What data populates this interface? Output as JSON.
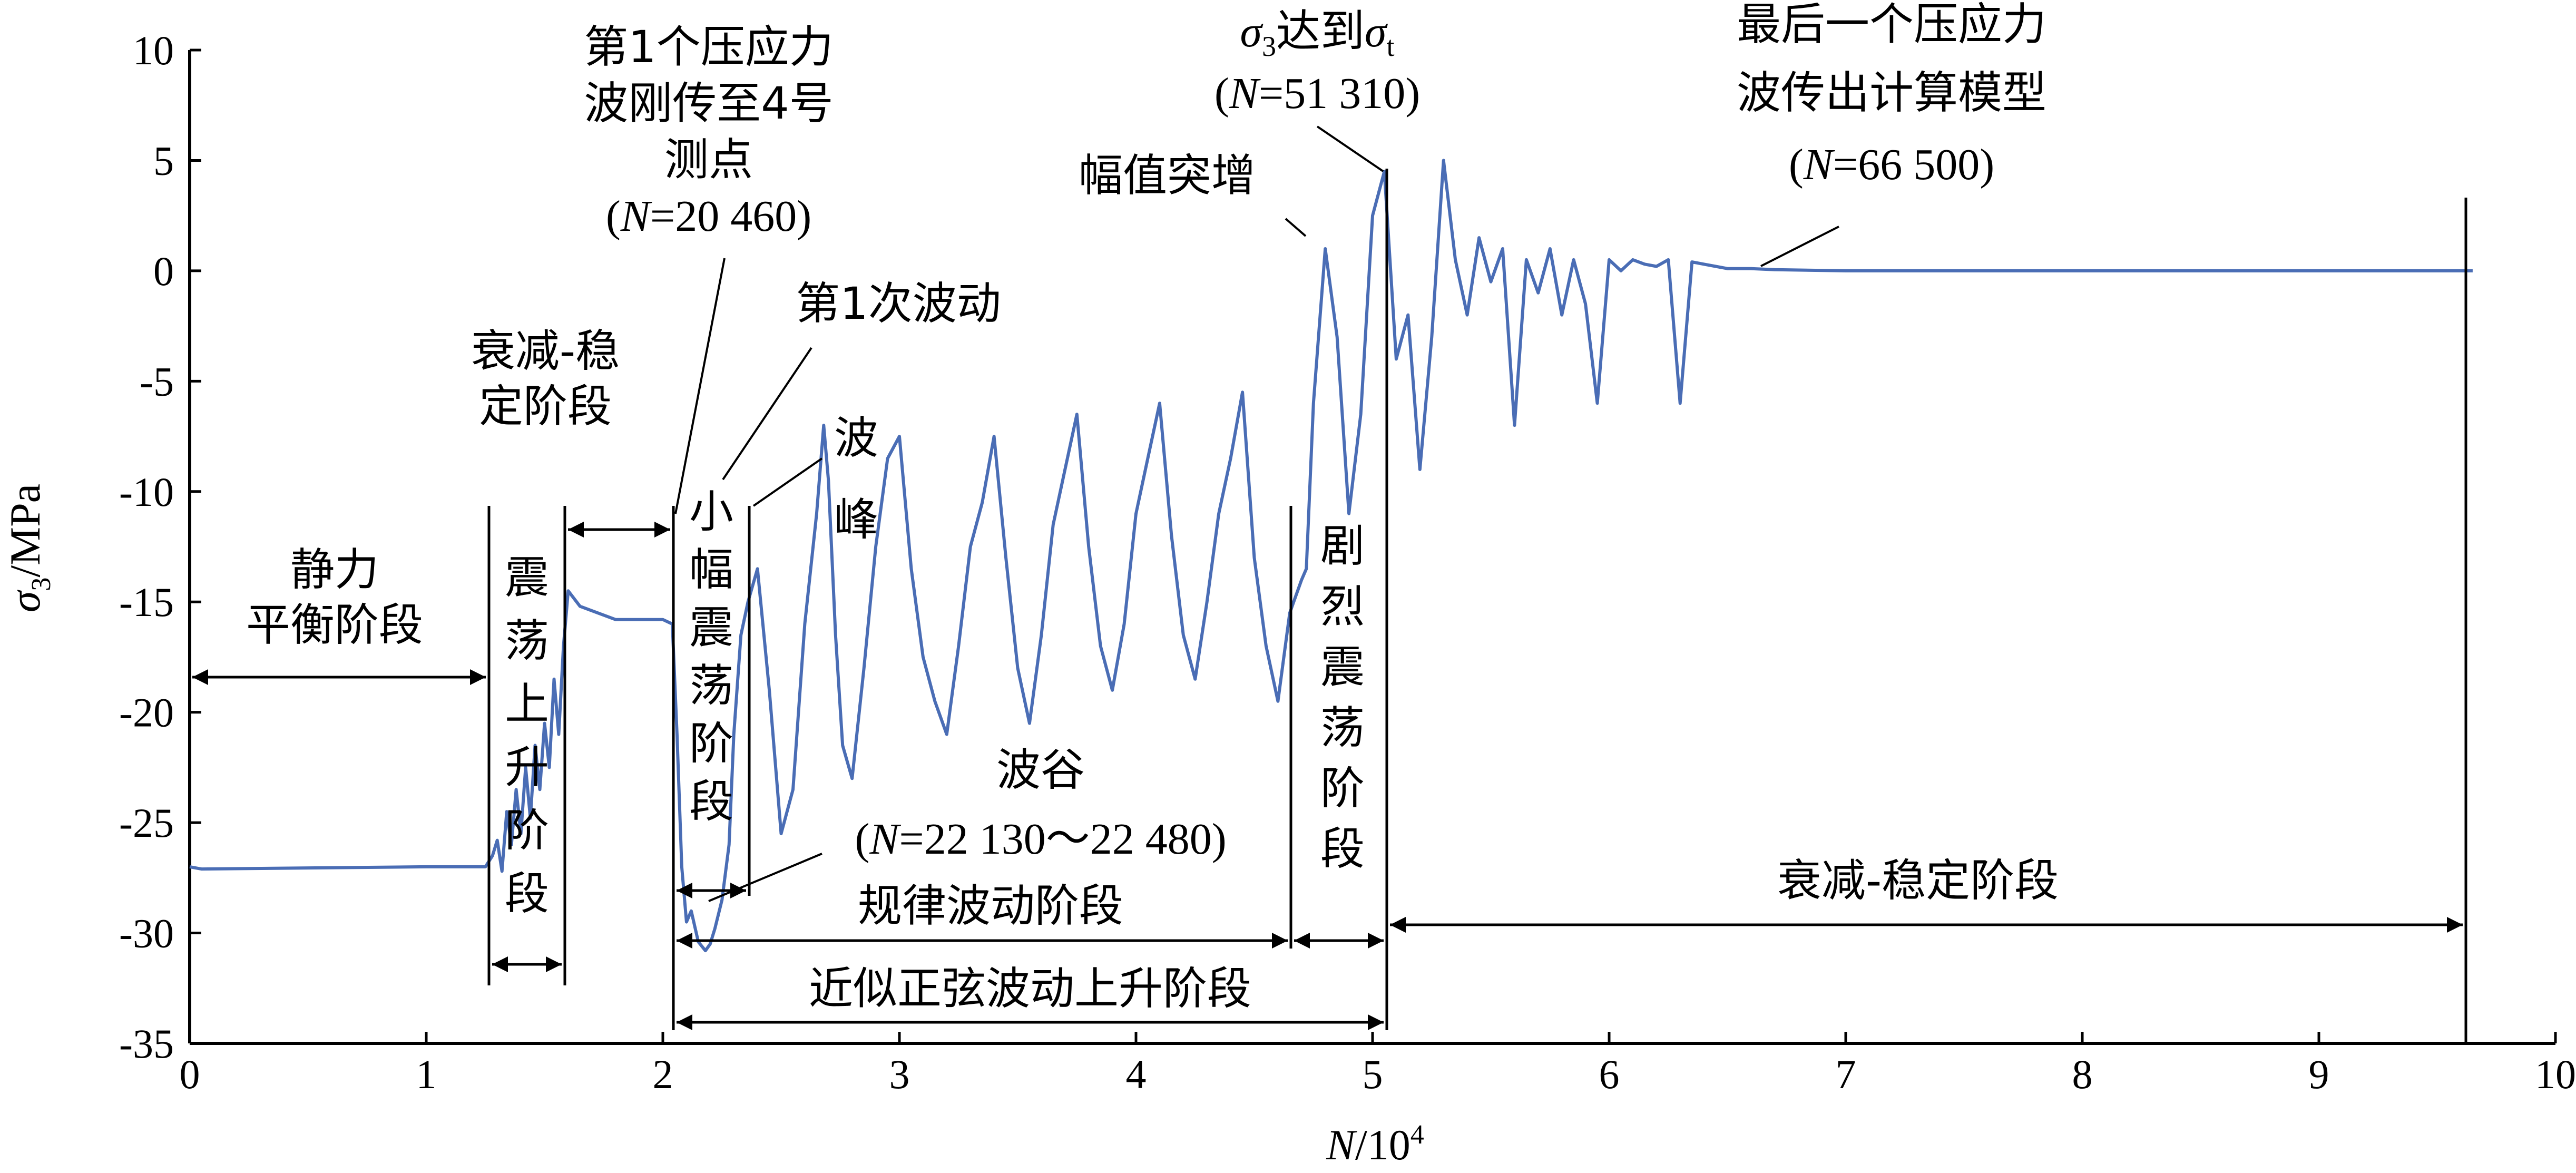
{
  "chart_data": {
    "type": "line",
    "xlabel": "N/10⁴",
    "ylabel": "σ₃/MPa",
    "xlim": [
      0,
      10
    ],
    "ylim": [
      -35,
      10
    ],
    "x_ticks": [
      "0",
      "1",
      "2",
      "3",
      "4",
      "5",
      "6",
      "7",
      "8",
      "9",
      "10"
    ],
    "y_ticks": [
      "10",
      "5",
      "0",
      "-5",
      "-10",
      "-15",
      "-20",
      "-25",
      "-30",
      "-35"
    ],
    "series_color": "#4a6db5",
    "series": [
      {
        "x": [
          0,
          0.05,
          1.0,
          1.25,
          1.28,
          1.3,
          1.32,
          1.34,
          1.36,
          1.38,
          1.4,
          1.42,
          1.44,
          1.46,
          1.48,
          1.5,
          1.52,
          1.54,
          1.56,
          1.58,
          1.6,
          1.65,
          1.8,
          2.0,
          2.04,
          2.06,
          2.08,
          2.1,
          2.12,
          2.15,
          2.18,
          2.2,
          2.22,
          2.25,
          2.28,
          2.3,
          2.33,
          2.36,
          2.4,
          2.45,
          2.5,
          2.55,
          2.6,
          2.65,
          2.68,
          2.7,
          2.73,
          2.76,
          2.8,
          2.85,
          2.9,
          2.95,
          3.0,
          3.05,
          3.1,
          3.15,
          3.2,
          3.25,
          3.3,
          3.35,
          3.4,
          3.45,
          3.5,
          3.55,
          3.6,
          3.65,
          3.7,
          3.75,
          3.8,
          3.85,
          3.9,
          3.95,
          4.0,
          4.05,
          4.1,
          4.15,
          4.2,
          4.25,
          4.3,
          4.35,
          4.4,
          4.45,
          4.5,
          4.55,
          4.6,
          4.65,
          4.7,
          4.72,
          4.75,
          4.8,
          4.85,
          4.9,
          4.95,
          5.0,
          5.05,
          5.1,
          5.15,
          5.2,
          5.25,
          5.3,
          5.35,
          5.4,
          5.45,
          5.5,
          5.55,
          5.6,
          5.65,
          5.7,
          5.75,
          5.8,
          5.85,
          5.9,
          5.95,
          6.0,
          6.05,
          6.1,
          6.15,
          6.2,
          6.25,
          6.3,
          6.35,
          6.4,
          6.45,
          6.5,
          6.6,
          6.7,
          7.0,
          8.0,
          9.0,
          9.65
        ],
        "y": [
          -27,
          -27.1,
          -27.0,
          -27.0,
          -26.5,
          -25.8,
          -27.2,
          -24.5,
          -26.0,
          -23.5,
          -25.5,
          -22.5,
          -24.8,
          -21.5,
          -23.5,
          -20.5,
          -22.5,
          -18.5,
          -21.0,
          -17.0,
          -14.5,
          -15.2,
          -15.8,
          -15.8,
          -16.0,
          -21.0,
          -27.0,
          -29.5,
          -29.0,
          -30.4,
          -30.8,
          -30.5,
          -29.8,
          -28.5,
          -26.0,
          -21.0,
          -16.5,
          -15.0,
          -13.5,
          -19.0,
          -25.5,
          -23.5,
          -16.0,
          -11.0,
          -7.0,
          -9.5,
          -16.5,
          -21.5,
          -23.0,
          -18.0,
          -12.5,
          -8.5,
          -7.5,
          -13.5,
          -17.5,
          -19.5,
          -21.0,
          -17.0,
          -12.5,
          -10.5,
          -7.5,
          -13.0,
          -18.0,
          -20.5,
          -16.5,
          -11.5,
          -9.0,
          -6.5,
          -12.5,
          -17.0,
          -19.0,
          -16.0,
          -11.0,
          -8.5,
          -6.0,
          -12.0,
          -16.5,
          -18.5,
          -15.0,
          -11.0,
          -8.5,
          -5.5,
          -13.0,
          -17.0,
          -19.5,
          -15.5,
          -14.0,
          -13.5,
          -6.0,
          1.0,
          -3.0,
          -11.0,
          -6.5,
          2.5,
          4.5,
          -4.0,
          -2.0,
          -9.0,
          -3.0,
          5.0,
          0.5,
          -2.0,
          1.5,
          -0.5,
          1.0,
          -7.0,
          0.5,
          -1.0,
          1.0,
          -2.0,
          0.5,
          -1.5,
          -6.0,
          0.5,
          0.0,
          0.5,
          0.3,
          0.2,
          0.5,
          -6.0,
          0.4,
          0.3,
          0.2,
          0.1,
          0.1,
          0.05,
          0.0,
          0.0,
          0.0,
          0.0
        ]
      }
    ]
  },
  "annotations": {
    "static_balance_1": "静力",
    "static_balance_2": "平衡阶段",
    "oscillation_rise_chars": [
      "震",
      "荡",
      "上",
      "升",
      "阶",
      "段"
    ],
    "decay_stable_1": "衰减-稳",
    "decay_stable_2": "定阶段",
    "first_wave_1": "第1个压应力",
    "first_wave_2": "波刚传至4号",
    "first_wave_3": "测点",
    "first_wave_n_open": "(",
    "first_wave_n_var": "N",
    "first_wave_n_val": "=20 460)",
    "small_oscillation_chars": [
      "小",
      "幅",
      "震",
      "荡",
      "阶",
      "段"
    ],
    "first_fluctuation": "第1次波动",
    "peak_chars": [
      "波",
      "峰"
    ],
    "trough_1": "波谷",
    "trough_n_open": "(",
    "trough_n_var": "N",
    "trough_n_val": "=22 130～22 480)",
    "regular_wave": "规律波动阶段",
    "sine_rise": "近似正弦波动上升阶段",
    "amp_jump": "幅值突增",
    "sigma_reach_s": "σ",
    "sigma_reach_sub3": "3",
    "sigma_reach_mid": "达到",
    "sigma_reach_t": "σ",
    "sigma_reach_subt": "t",
    "sigma_reach_n_open": "(",
    "sigma_reach_n_var": "N",
    "sigma_reach_n_val": "=51 310)",
    "violent_chars": [
      "剧",
      "烈",
      "震",
      "荡",
      "阶",
      "段"
    ],
    "last_wave_1": "最后一个压应力",
    "last_wave_2": "波传出计算模型",
    "last_wave_n_open": "(",
    "last_wave_n_var": "N",
    "last_wave_n_val": "=66 500)",
    "final_decay": "衰减-稳定阶段"
  }
}
